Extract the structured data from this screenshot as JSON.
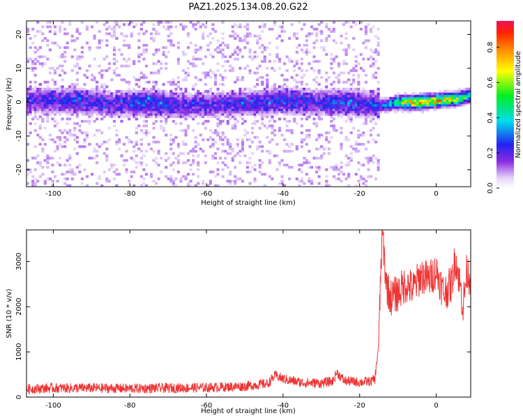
{
  "title": "PAZ1.2025.134.08.20.G22",
  "chart_data": [
    {
      "type": "heatmap",
      "xlabel": "Height of straight line (km)",
      "ylabel": "Frequency (Hz)",
      "xlim": [
        -107,
        9
      ],
      "ylim": [
        -25,
        24
      ],
      "x_ticks": [
        -100,
        -80,
        -60,
        -40,
        -20,
        0
      ],
      "y_ticks": [
        -20,
        -10,
        0,
        10,
        20
      ],
      "colorbar": {
        "label": "Normalized spectral amplitude",
        "range": [
          0,
          0.95
        ],
        "ticks": [
          0.0,
          0.2,
          0.4,
          0.6,
          0.8
        ]
      },
      "ridge": [
        {
          "x": -105,
          "f": 0.5,
          "amp": 0.22
        },
        {
          "x": -95,
          "f": 0.5,
          "amp": 0.25
        },
        {
          "x": -85,
          "f": -0.5,
          "amp": 0.22
        },
        {
          "x": -75,
          "f": 0.0,
          "amp": 0.3
        },
        {
          "x": -65,
          "f": -1.0,
          "amp": 0.22
        },
        {
          "x": -55,
          "f": -0.5,
          "amp": 0.22
        },
        {
          "x": -45,
          "f": 0.0,
          "amp": 0.25
        },
        {
          "x": -40,
          "f": 0.5,
          "amp": 0.3
        },
        {
          "x": -30,
          "f": 0.0,
          "amp": 0.22
        },
        {
          "x": -25,
          "f": 0.0,
          "amp": 0.3
        },
        {
          "x": -18,
          "f": -0.5,
          "amp": 0.25
        },
        {
          "x": -14,
          "f": -1.0,
          "amp": 0.3
        },
        {
          "x": -10,
          "f": 0.0,
          "amp": 0.55
        },
        {
          "x": -5,
          "f": 0.0,
          "amp": 0.88
        },
        {
          "x": 0,
          "f": 0.5,
          "amp": 0.82
        },
        {
          "x": 5,
          "f": 1.0,
          "amp": 0.7
        },
        {
          "x": 9,
          "f": 2.0,
          "amp": 0.45
        }
      ]
    },
    {
      "type": "line",
      "xlabel": "Height of straight line (km)",
      "ylabel": "SNR (10 * v/v)",
      "xlim": [
        -107,
        9
      ],
      "ylim": [
        0,
        3700
      ],
      "x_ticks": [
        -100,
        -80,
        -60,
        -40,
        -20,
        0
      ],
      "y_ticks": [
        0,
        1000,
        2000,
        3000
      ],
      "series": [
        {
          "color": "#ee3333",
          "x": [
            -107,
            -100,
            -90,
            -80,
            -70,
            -60,
            -50,
            -44,
            -42,
            -40,
            -35,
            -30,
            -27,
            -26,
            -24,
            -20,
            -17,
            -16,
            -15,
            -14.5,
            -14,
            -13.5,
            -13,
            -12,
            -10,
            -8,
            -6,
            -4,
            -2,
            0,
            2,
            4,
            5,
            6,
            7,
            8,
            9
          ],
          "y": [
            180,
            200,
            200,
            190,
            200,
            210,
            240,
            300,
            480,
            400,
            320,
            310,
            350,
            550,
            360,
            330,
            350,
            400,
            1200,
            2800,
            3650,
            3000,
            2500,
            2200,
            2300,
            2500,
            2400,
            2700,
            2600,
            2800,
            2300,
            2500,
            3100,
            2600,
            2000,
            2800,
            2600
          ]
        }
      ]
    }
  ]
}
